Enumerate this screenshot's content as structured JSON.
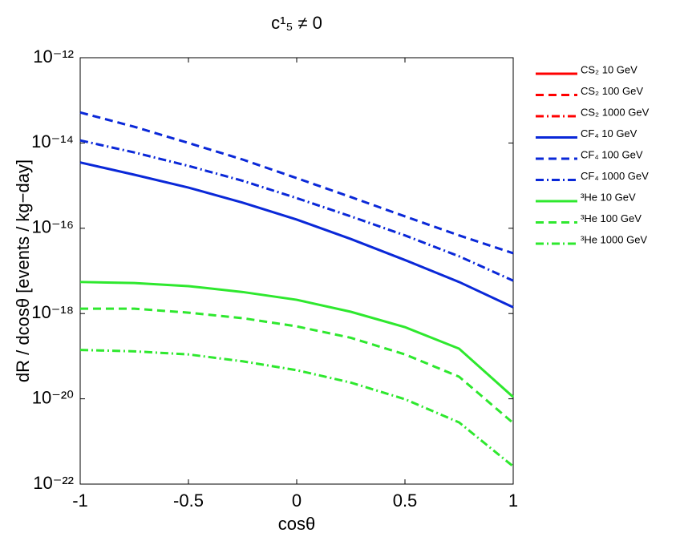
{
  "chart_data": {
    "type": "line",
    "title": "c¹₅ ≠ 0",
    "x_label": "cosθ",
    "y_label": "dR / dcosθ  [events / kg−day]",
    "x": [
      -1,
      -0.75,
      -0.5,
      -0.25,
      0,
      0.25,
      0.5,
      0.75,
      1
    ],
    "xlim": [
      -1,
      1
    ],
    "xticks": [
      -1,
      -0.5,
      0,
      0.5,
      1
    ],
    "ylim": [
      1e-22,
      1e-12
    ],
    "ylog": true,
    "yticks": [
      {
        "value": 1e-22,
        "label": "10⁻²²"
      },
      {
        "value": 1e-20,
        "label": "10⁻²⁰"
      },
      {
        "value": 1e-18,
        "label": "10⁻¹⁸"
      },
      {
        "value": 1e-16,
        "label": "10⁻¹⁶"
      },
      {
        "value": 1e-14,
        "label": "10⁻¹⁴"
      },
      {
        "value": 1e-12,
        "label": "10⁻¹²"
      }
    ],
    "legend": "outside-right",
    "series": [
      {
        "name": "CS₂ 10 GeV",
        "color": "#ff0000",
        "dash": "solid",
        "values": [
          null,
          null,
          null,
          null,
          null,
          null,
          null,
          null,
          null
        ]
      },
      {
        "name": "CS₂ 100 GeV",
        "color": "#ff0000",
        "dash": "dashed",
        "values": [
          null,
          null,
          null,
          null,
          null,
          null,
          null,
          null,
          null
        ]
      },
      {
        "name": "CS₂ 1000 GeV",
        "color": "#ff0000",
        "dash": "dashdot",
        "values": [
          null,
          null,
          null,
          null,
          null,
          null,
          null,
          null,
          null
        ]
      },
      {
        "name": "CF₄ 10 GeV",
        "color": "#0a28d8",
        "dash": "solid",
        "values": [
          3.5e-15,
          1.8e-15,
          9e-16,
          4e-16,
          1.6e-16,
          5.6e-17,
          1.8e-17,
          5.5e-18,
          1.4e-18
        ]
      },
      {
        "name": "CF₄ 100 GeV",
        "color": "#0a28d8",
        "dash": "dashed",
        "values": [
          5.2e-14,
          2.4e-14,
          1e-14,
          4.1e-15,
          1.5e-15,
          5.4e-16,
          1.9e-16,
          6.8e-17,
          2.6e-17
        ]
      },
      {
        "name": "CF₄ 1000 GeV",
        "color": "#0a28d8",
        "dash": "dashdot",
        "values": [
          1.15e-14,
          6e-15,
          2.9e-15,
          1.3e-15,
          5.1e-16,
          1.9e-16,
          6.8e-17,
          2.2e-17,
          5.9e-18
        ]
      },
      {
        "name": "³He 10 GeV",
        "color": "#2ee82e",
        "dash": "solid",
        "values": [
          5.5e-18,
          5.2e-18,
          4.4e-18,
          3.2e-18,
          2.1e-18,
          1.1e-18,
          4.8e-19,
          1.5e-19,
          1.1e-20
        ]
      },
      {
        "name": "³He 100 GeV",
        "color": "#2ee82e",
        "dash": "dashed",
        "values": [
          1.3e-18,
          1.3e-18,
          1.05e-18,
          7.8e-19,
          5e-19,
          2.7e-19,
          1.1e-19,
          3.3e-20,
          2.7e-21
        ]
      },
      {
        "name": "³He 1000 GeV",
        "color": "#2ee82e",
        "dash": "dashdot",
        "values": [
          1.4e-19,
          1.3e-19,
          1.1e-19,
          7.6e-20,
          4.7e-20,
          2.4e-20,
          9.8e-21,
          2.8e-21,
          2.6e-22
        ]
      }
    ]
  }
}
